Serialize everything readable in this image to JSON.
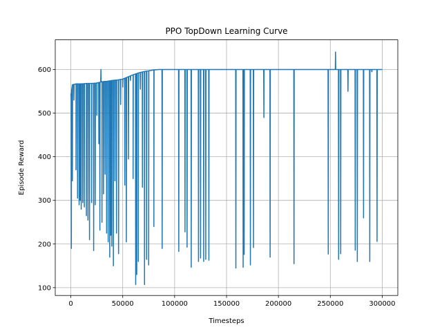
{
  "chart_data": {
    "type": "line",
    "title": "PPO TopDown Learning Curve",
    "xlabel": "Timesteps",
    "ylabel": "Episode Reward",
    "xlim": [
      -15000,
      315000
    ],
    "ylim": [
      82,
      668
    ],
    "xticks": [
      0,
      50000,
      100000,
      150000,
      200000,
      250000,
      300000
    ],
    "xtick_labels": [
      "0",
      "50000",
      "100000",
      "150000",
      "200000",
      "250000",
      "300000"
    ],
    "yticks": [
      100,
      200,
      300,
      400,
      500,
      600
    ],
    "ytick_labels": [
      "100",
      "200",
      "300",
      "400",
      "500",
      "600"
    ],
    "grid": true,
    "color": "#1f77b4",
    "series": [
      {
        "name": "",
        "baseline": [
          [
            0,
            540
          ],
          [
            1500,
            565
          ],
          [
            5000,
            567
          ],
          [
            10000,
            567
          ],
          [
            15000,
            568
          ],
          [
            20000,
            568
          ],
          [
            25000,
            569
          ],
          [
            30000,
            572
          ],
          [
            35000,
            573
          ],
          [
            40000,
            575
          ],
          [
            45000,
            576
          ],
          [
            50000,
            578
          ],
          [
            55000,
            583
          ],
          [
            60000,
            588
          ],
          [
            65000,
            592
          ],
          [
            70000,
            595
          ],
          [
            75000,
            597
          ],
          [
            80000,
            599
          ],
          [
            85000,
            600
          ],
          [
            90000,
            600
          ],
          [
            300000,
            600
          ]
        ],
        "dips": [
          [
            500,
            190
          ],
          [
            1500,
            345
          ],
          [
            3000,
            530
          ],
          [
            5000,
            370
          ],
          [
            6500,
            305
          ],
          [
            8000,
            290
          ],
          [
            9000,
            300
          ],
          [
            10000,
            280
          ],
          [
            11500,
            295
          ],
          [
            13000,
            285
          ],
          [
            15000,
            265
          ],
          [
            16500,
            255
          ],
          [
            18000,
            210
          ],
          [
            20000,
            295
          ],
          [
            22000,
            185
          ],
          [
            23500,
            290
          ],
          [
            25000,
            495
          ],
          [
            27000,
            430
          ],
          [
            28000,
            232
          ],
          [
            29000,
            600
          ],
          [
            30000,
            250
          ],
          [
            31500,
            315
          ],
          [
            33000,
            360
          ],
          [
            34500,
            225
          ],
          [
            36000,
            205
          ],
          [
            37500,
            170
          ],
          [
            38500,
            220
          ],
          [
            39500,
            195
          ],
          [
            41000,
            150
          ],
          [
            42500,
            345
          ],
          [
            44000,
            225
          ],
          [
            46000,
            178
          ],
          [
            48000,
            520
          ],
          [
            50000,
            560
          ],
          [
            52000,
            335
          ],
          [
            53500,
            205
          ],
          [
            55500,
            395
          ],
          [
            57500,
            575
          ],
          [
            60000,
            350
          ],
          [
            62500,
            107
          ],
          [
            63500,
            130
          ],
          [
            65000,
            160
          ],
          [
            67000,
            555
          ],
          [
            69000,
            330
          ],
          [
            71000,
            107
          ],
          [
            73000,
            165
          ],
          [
            75000,
            152
          ],
          [
            80000,
            240
          ],
          [
            88000,
            190
          ],
          [
            104000,
            183
          ],
          [
            110000,
            228
          ],
          [
            112000,
            193
          ],
          [
            116000,
            147
          ],
          [
            123000,
            160
          ],
          [
            125000,
            168
          ],
          [
            128000,
            160
          ],
          [
            130000,
            165
          ],
          [
            133000,
            163
          ],
          [
            159000,
            145
          ],
          [
            166000,
            147
          ],
          [
            167000,
            176
          ],
          [
            173000,
            152
          ],
          [
            176000,
            192
          ],
          [
            186000,
            490
          ],
          [
            192000,
            170
          ],
          [
            215000,
            155
          ],
          [
            248000,
            177
          ],
          [
            255000,
            640
          ],
          [
            258000,
            165
          ],
          [
            260000,
            178
          ],
          [
            267000,
            550
          ],
          [
            274000,
            186
          ],
          [
            276000,
            160
          ],
          [
            282000,
            260
          ],
          [
            288000,
            160
          ],
          [
            290000,
            595
          ],
          [
            295000,
            206
          ]
        ]
      }
    ]
  }
}
